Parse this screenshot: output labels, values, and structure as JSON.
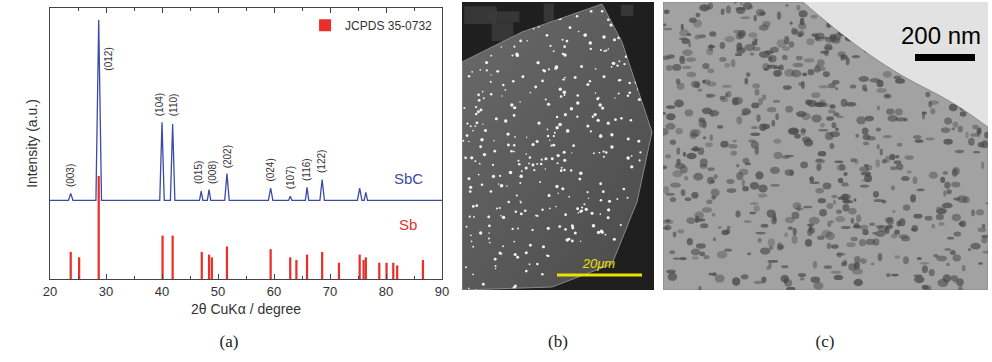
{
  "chart_data": {
    "type": "line",
    "panel_label": "(a)",
    "x_label": "2θ CuKα / degree",
    "y_label": "Intensity (a.u.)",
    "xlim": [
      20,
      90
    ],
    "xticks": [
      20,
      30,
      40,
      50,
      60,
      70,
      80,
      90
    ],
    "ylim": [
      0,
      100
    ],
    "tick_labels": "x",
    "grid": false,
    "legend": "upper right",
    "series": [
      {
        "type": "line",
        "color": "#3b4ba6",
        "x": [
          20,
          23.3,
          23.7,
          24.1,
          28.2,
          28.7,
          29.2,
          39.6,
          40.0,
          40.4,
          41.5,
          41.9,
          42.3,
          46.7,
          47.0,
          47.3,
          48.1,
          48.4,
          48.7,
          51.2,
          51.6,
          52.0,
          59.0,
          59.4,
          59.8,
          62.6,
          62.9,
          63.2,
          65.6,
          65.9,
          66.2,
          68.2,
          68.6,
          69.0,
          74.9,
          75.3,
          75.7,
          76.1,
          76.4,
          76.7,
          90
        ],
        "values": [
          29,
          29,
          31.6,
          29,
          29,
          95.6,
          29,
          29,
          57.8,
          29,
          29,
          57.2,
          29,
          29,
          32.4,
          29,
          29,
          33,
          29,
          29,
          38.9,
          29,
          29,
          33.5,
          29,
          29,
          30.5,
          29,
          29,
          33.8,
          29,
          29,
          36.7,
          29,
          29,
          33.5,
          29,
          29,
          32,
          29,
          29
        ]
      },
      {
        "name": "JCPDS 35-0732",
        "type": "bar",
        "color": "#e8302a",
        "x": [
          23.7,
          25.2,
          28.7,
          40.1,
          41.9,
          47.1,
          48.4,
          48.9,
          51.6,
          59.4,
          62.9,
          64.0,
          65.9,
          68.6,
          71.6,
          75.3,
          76.0,
          76.4,
          78.8,
          80.1,
          81.3,
          82.0,
          86.6
        ],
        "values": [
          10,
          8,
          38,
          16,
          16,
          10,
          9,
          8,
          12,
          11,
          8,
          7,
          9,
          10,
          6,
          9,
          7,
          8,
          6,
          6,
          6,
          5,
          7
        ]
      }
    ],
    "peak_labels": [
      {
        "text": "(003)",
        "x": 23.7,
        "y": 34
      },
      {
        "text": "(012)",
        "x": 30.5,
        "y": 77
      },
      {
        "text": "(104)",
        "x": 39.7,
        "y": 60
      },
      {
        "text": "(110)",
        "x": 42.2,
        "y": 60
      },
      {
        "text": "(015)",
        "x": 46.5,
        "y": 35
      },
      {
        "text": "(008)",
        "x": 49.0,
        "y": 35
      },
      {
        "text": "(202)",
        "x": 51.6,
        "y": 41
      },
      {
        "text": "(024)",
        "x": 59.4,
        "y": 36
      },
      {
        "text": "(107)",
        "x": 62.9,
        "y": 33
      },
      {
        "text": "(116)",
        "x": 65.9,
        "y": 36
      },
      {
        "text": "(122)",
        "x": 68.6,
        "y": 39
      }
    ],
    "annotations": [
      {
        "text": "SbC",
        "x": 84,
        "y": 37,
        "color": "#3b4ba6"
      },
      {
        "text": "Sb",
        "x": 84,
        "y": 20,
        "color": "#e8302a"
      }
    ]
  },
  "images": [
    {
      "label": "(b)",
      "scale_bar": "20μm"
    },
    {
      "label": "(c)",
      "scale_bar": "200 nm"
    }
  ]
}
